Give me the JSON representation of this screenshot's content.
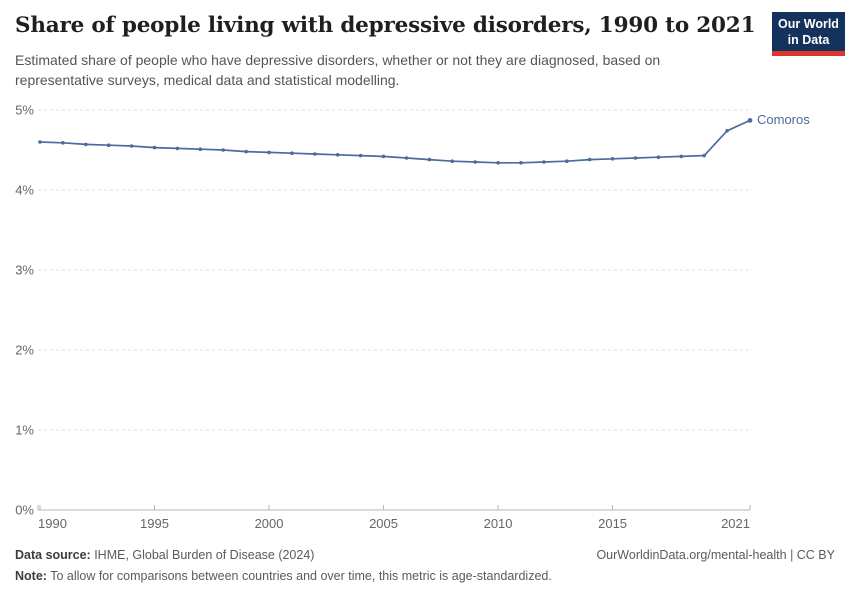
{
  "logo": {
    "line1": "Our World",
    "line2": "in Data"
  },
  "theme": {
    "line_color": "#4C6A9C",
    "logo_bg": "#13335C",
    "logo_stripe": "#DC352E",
    "grid_color": "#DCDCDC",
    "axis_color": "#B7B7B7",
    "tick_label_color": "#666666"
  },
  "chart_data": {
    "type": "line",
    "title": "Share of people living with depressive disorders, 1990 to 2021",
    "subtitle": "Estimated share of people who have depressive disorders, whether or not they are diagnosed, based on representative surveys, medical data and statistical modelling.",
    "x": [
      1990,
      1991,
      1992,
      1993,
      1994,
      1995,
      1996,
      1997,
      1998,
      1999,
      2000,
      2001,
      2002,
      2003,
      2004,
      2005,
      2006,
      2007,
      2008,
      2009,
      2010,
      2011,
      2012,
      2013,
      2014,
      2015,
      2016,
      2017,
      2018,
      2019,
      2020,
      2021
    ],
    "series": [
      {
        "name": "Comoros",
        "values": [
          4.6,
          4.59,
          4.57,
          4.56,
          4.55,
          4.53,
          4.52,
          4.51,
          4.5,
          4.48,
          4.47,
          4.46,
          4.45,
          4.44,
          4.43,
          4.42,
          4.4,
          4.38,
          4.36,
          4.35,
          4.34,
          4.34,
          4.35,
          4.36,
          4.38,
          4.39,
          4.4,
          4.41,
          4.42,
          4.43,
          4.74,
          4.87
        ]
      }
    ],
    "xlabel": "",
    "ylabel": "",
    "ylim": [
      0,
      5
    ],
    "yticks": [
      0,
      1,
      2,
      3,
      4,
      5
    ],
    "ytick_suffix": "%",
    "xticks": [
      1990,
      1995,
      2000,
      2005,
      2010,
      2015,
      2021
    ],
    "grid": "horizontal-dashed",
    "legend": "inline-end-label"
  },
  "footer": {
    "datasource_label": "Data source:",
    "datasource": " IHME, Global Burden of Disease (2024)",
    "credit": "OurWorldinData.org/mental-health | CC BY",
    "note_label": "Note:",
    "note": " To allow for comparisons between countries and over time, this metric is age-standardized."
  }
}
